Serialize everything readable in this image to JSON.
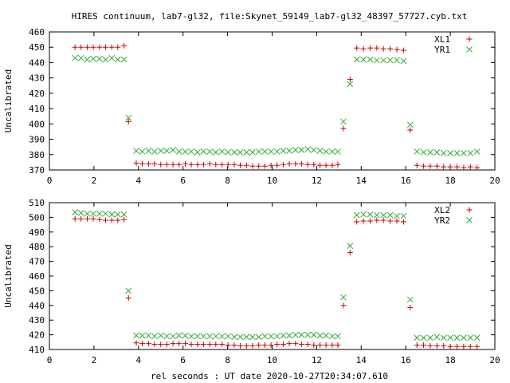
{
  "title": "HIRES continuum, lab7-gl32, file:Skynet_59149_lab7-gl32_48397_57727.cyb.txt",
  "xlabel": "rel seconds : UT date 2020-10-27T20:34:07.610",
  "colors": {
    "plus": "#cc0000",
    "cross": "#33aa33",
    "axis": "#000000"
  },
  "chart_data": [
    {
      "type": "scatter",
      "ylabel": "Uncalibrated",
      "xlim": [
        0,
        20
      ],
      "ylim": [
        370,
        460
      ],
      "xticks": [
        0,
        2,
        4,
        6,
        8,
        10,
        12,
        14,
        16,
        18,
        20
      ],
      "yticks": [
        370,
        380,
        390,
        400,
        410,
        420,
        430,
        440,
        450,
        460
      ],
      "legend_position": "top-right",
      "series": [
        {
          "name": "XL1",
          "marker": "plus",
          "x": [
            1.15,
            1.42,
            1.7,
            1.97,
            2.25,
            2.52,
            2.8,
            3.07,
            3.35,
            3.55,
            3.9,
            4.17,
            4.45,
            4.72,
            5.0,
            5.27,
            5.55,
            5.82,
            6.1,
            6.37,
            6.65,
            6.92,
            7.2,
            7.47,
            7.75,
            8.02,
            8.3,
            8.57,
            8.85,
            9.12,
            9.4,
            9.67,
            9.95,
            10.22,
            10.5,
            10.77,
            11.05,
            11.32,
            11.6,
            11.87,
            12.15,
            12.42,
            12.7,
            12.95,
            13.2,
            13.5,
            13.8,
            14.1,
            14.4,
            14.7,
            15.0,
            15.3,
            15.6,
            15.9,
            16.2,
            16.5,
            16.8,
            17.1,
            17.4,
            17.7,
            18.0,
            18.3,
            18.6,
            18.9,
            19.2
          ],
          "y": [
            450,
            450,
            450,
            450,
            450,
            450,
            450,
            450,
            451,
            401.5,
            374.5,
            374,
            374,
            374,
            373.5,
            373.5,
            373.5,
            373.5,
            374,
            373.5,
            373.5,
            373.5,
            374,
            373.5,
            373.5,
            373.5,
            373.5,
            373,
            373,
            372.5,
            372.5,
            372.5,
            373,
            373,
            373.5,
            374,
            374,
            374,
            373.5,
            373.5,
            373,
            373,
            373,
            373.5,
            397,
            429,
            449.5,
            449,
            449.5,
            449.5,
            449,
            449,
            448.5,
            448,
            396,
            373,
            372.5,
            372.5,
            372.5,
            372,
            372,
            372,
            371.5,
            372,
            371.5
          ]
        },
        {
          "name": "YR1",
          "marker": "cross",
          "x": [
            1.15,
            1.42,
            1.7,
            1.97,
            2.25,
            2.52,
            2.8,
            3.07,
            3.35,
            3.55,
            3.9,
            4.17,
            4.45,
            4.72,
            5.0,
            5.27,
            5.55,
            5.82,
            6.1,
            6.37,
            6.65,
            6.92,
            7.2,
            7.47,
            7.75,
            8.02,
            8.3,
            8.57,
            8.85,
            9.12,
            9.4,
            9.67,
            9.95,
            10.22,
            10.5,
            10.77,
            11.05,
            11.32,
            11.6,
            11.87,
            12.15,
            12.42,
            12.7,
            12.95,
            13.2,
            13.5,
            13.8,
            14.1,
            14.4,
            14.7,
            15.0,
            15.3,
            15.6,
            15.9,
            16.2,
            16.5,
            16.8,
            17.1,
            17.4,
            17.7,
            18.0,
            18.3,
            18.6,
            18.9,
            19.2
          ],
          "y": [
            443,
            443,
            442,
            442.5,
            442.5,
            442,
            443,
            442,
            442,
            404,
            382.5,
            382,
            382.5,
            382,
            382.5,
            382.5,
            383,
            382,
            382,
            382,
            381.5,
            382,
            382,
            381.5,
            382,
            381.5,
            381.5,
            381.5,
            381.5,
            381.5,
            382,
            382,
            382,
            382,
            382.5,
            382.5,
            383,
            383,
            383.5,
            383,
            382.5,
            382,
            382,
            382,
            401.5,
            426,
            442,
            442,
            442,
            441.5,
            441.5,
            441.5,
            441.5,
            441,
            399.5,
            382,
            381.5,
            381.5,
            381.5,
            381,
            381,
            381,
            381,
            381,
            382
          ]
        }
      ]
    },
    {
      "type": "scatter",
      "ylabel": "Uncalibrated",
      "xlim": [
        0,
        20
      ],
      "ylim": [
        410,
        510
      ],
      "xticks": [
        0,
        2,
        4,
        6,
        8,
        10,
        12,
        14,
        16,
        18,
        20
      ],
      "yticks": [
        410,
        420,
        430,
        440,
        450,
        460,
        470,
        480,
        490,
        500,
        510
      ],
      "legend_position": "top-right",
      "series": [
        {
          "name": "XL2",
          "marker": "plus",
          "x": [
            1.15,
            1.42,
            1.7,
            1.97,
            2.25,
            2.52,
            2.8,
            3.07,
            3.35,
            3.55,
            3.9,
            4.17,
            4.45,
            4.72,
            5.0,
            5.27,
            5.55,
            5.82,
            6.1,
            6.37,
            6.65,
            6.92,
            7.2,
            7.47,
            7.75,
            8.02,
            8.3,
            8.57,
            8.85,
            9.12,
            9.4,
            9.67,
            9.95,
            10.22,
            10.5,
            10.77,
            11.05,
            11.32,
            11.6,
            11.87,
            12.15,
            12.42,
            12.7,
            12.95,
            13.2,
            13.5,
            13.8,
            14.1,
            14.4,
            14.7,
            15.0,
            15.3,
            15.6,
            15.9,
            16.2,
            16.5,
            16.8,
            17.1,
            17.4,
            17.7,
            18.0,
            18.3,
            18.6,
            18.9,
            19.2
          ],
          "y": [
            499,
            499,
            499,
            499,
            498.5,
            498,
            498,
            498,
            498.5,
            445,
            414.5,
            414,
            414,
            413.5,
            413.5,
            413.5,
            414,
            414,
            414,
            413.5,
            413.5,
            413.5,
            413.5,
            413.5,
            413.5,
            413,
            413,
            412.5,
            412.5,
            412.5,
            413,
            413,
            413,
            413.5,
            413.5,
            414,
            414,
            413.5,
            413.5,
            413,
            413,
            413,
            413,
            413,
            440,
            476,
            497,
            497.5,
            497.5,
            498,
            498,
            497.5,
            497.5,
            497,
            438.5,
            413,
            413,
            412.5,
            412.5,
            412.5,
            412,
            412,
            412,
            412,
            412
          ]
        },
        {
          "name": "YR2",
          "marker": "cross",
          "x": [
            1.15,
            1.42,
            1.7,
            1.97,
            2.25,
            2.52,
            2.8,
            3.07,
            3.35,
            3.55,
            3.9,
            4.17,
            4.45,
            4.72,
            5.0,
            5.27,
            5.55,
            5.82,
            6.1,
            6.37,
            6.65,
            6.92,
            7.2,
            7.47,
            7.75,
            8.02,
            8.3,
            8.57,
            8.85,
            9.12,
            9.4,
            9.67,
            9.95,
            10.22,
            10.5,
            10.77,
            11.05,
            11.32,
            11.6,
            11.87,
            12.15,
            12.42,
            12.7,
            12.95,
            13.2,
            13.5,
            13.8,
            14.1,
            14.4,
            14.7,
            15.0,
            15.3,
            15.6,
            15.9,
            16.2,
            16.5,
            16.8,
            17.1,
            17.4,
            17.7,
            18.0,
            18.3,
            18.6,
            18.9,
            19.2
          ],
          "y": [
            503.5,
            503,
            502.5,
            502.5,
            502.5,
            502.5,
            502,
            502,
            502,
            450,
            419.5,
            419.5,
            419.5,
            419,
            419.5,
            419,
            419,
            419.5,
            419.5,
            419,
            419,
            419,
            419,
            419,
            419,
            419,
            418.5,
            418.5,
            418.5,
            418.5,
            418.5,
            419,
            419,
            419,
            419.5,
            419.5,
            420,
            420,
            420,
            420,
            419.5,
            419.5,
            419,
            419,
            445.5,
            480.5,
            501.5,
            502,
            502,
            501.5,
            501.5,
            501.5,
            501,
            501,
            444,
            418,
            418,
            418,
            418.5,
            418,
            418,
            418,
            418,
            418,
            418
          ]
        }
      ]
    }
  ]
}
